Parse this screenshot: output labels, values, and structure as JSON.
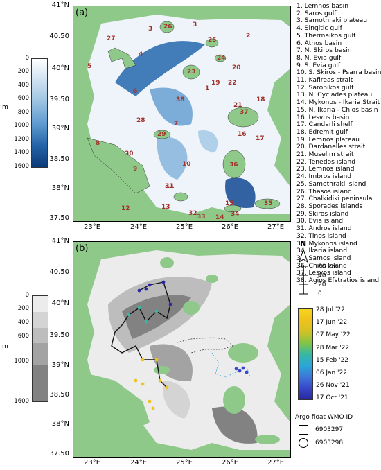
{
  "panel_a": {
    "label": "(a)",
    "colorbar": {
      "unit": "m",
      "ticks": [
        "0",
        "200",
        "400",
        "600",
        "800",
        "1000",
        "1200",
        "1400",
        "1600"
      ],
      "colors": [
        "#ffffff",
        "#0c3a78"
      ]
    },
    "lat_labels": [
      "41°N",
      "40.50",
      "40°N",
      "39.50",
      "39°N",
      "38.50",
      "38°N",
      "37.50"
    ],
    "lon_labels": [
      "23°E",
      "24°E",
      "25°E",
      "26°E",
      "27°E"
    ],
    "place_numbers": [
      "1",
      "2",
      "3",
      "4",
      "5",
      "6",
      "7",
      "8",
      "9",
      "10",
      "11",
      "12",
      "13",
      "14",
      "15",
      "16",
      "17",
      "18",
      "19",
      "20",
      "21",
      "22",
      "23",
      "24",
      "25",
      "26",
      "27",
      "28",
      "29",
      "30",
      "31",
      "32",
      "33",
      "34",
      "35",
      "36",
      "37",
      "38",
      "3"
    ],
    "legend": [
      "1. Lemnos basin",
      "2. Saros gulf",
      "3. Samothraki plateau",
      "4. Singitic gulf",
      "5. Thermaikos gulf",
      "6. Athos basin",
      "7. N. Skiros basin",
      "8. N. Evia gulf",
      "9. S. Evia gulf",
      "10. S. Skiros - Psarra basin",
      "11. Kafireas strait",
      "12. Saronikos gulf",
      "13. N. Cyclades plateau",
      "14. Mykonos - Ikaria Strait",
      "15. N. Ikaria - Chios basin",
      "16. Lesvos basin",
      "17. Candarli shelf",
      "18. Edremit gulf",
      "19. Lemnos plateau",
      "20. Dardanelles strait",
      "21. Muselim strait",
      "22. Tenedos island",
      "23. Lemnos island",
      "24. Imbros island",
      "25. Samothraki island",
      "26. Thasos island",
      "27. Chalkidiki peninsula",
      "28. Sporades islands",
      "29. Skiros island",
      "30. Evia island",
      "31. Andros island",
      "32. Tinos island",
      "33. Mykonos island",
      "34. Ikaria island",
      "35. Samos island",
      "36. Chios island",
      "37. Lesvos island",
      "38. Agios Efstratios island"
    ]
  },
  "panel_b": {
    "label": "(b)",
    "colorbar": {
      "unit": "m",
      "ticks": [
        "0",
        "200",
        "400",
        "600",
        "1000",
        "1600"
      ],
      "colors": [
        "#ececec",
        "#d4d4d4",
        "#bdbdbd",
        "#a3a3a3",
        "#828282"
      ]
    },
    "lat_labels": [
      "41°N",
      "40.50",
      "40°N",
      "39.50",
      "39°N",
      "38.50",
      "38°N",
      "37.50"
    ],
    "lon_labels": [
      "23°E",
      "24°E",
      "25°E",
      "26°E",
      "27°E"
    ],
    "north_label": "N",
    "scale": {
      "unit_label": "60 km",
      "ticks": [
        "40",
        "20",
        "0"
      ]
    },
    "time_legend": [
      "28 Jul '22",
      "17 Jun '22",
      "07 May '22",
      "28 Mar '22",
      "15 Feb '22",
      "06 Jan '22",
      "26 Nov '21",
      "17 Oct '21"
    ],
    "argo": {
      "title": "Argo float WMO ID",
      "floats": [
        {
          "id": "6903297",
          "marker": "square"
        },
        {
          "id": "6903298",
          "marker": "circle"
        }
      ]
    }
  },
  "colors": {
    "land": "#8fc98a",
    "shallow": "#ffffff",
    "deep_blue": "#0c3a78",
    "number_red": "#a0322a",
    "track_black": "#111111"
  }
}
